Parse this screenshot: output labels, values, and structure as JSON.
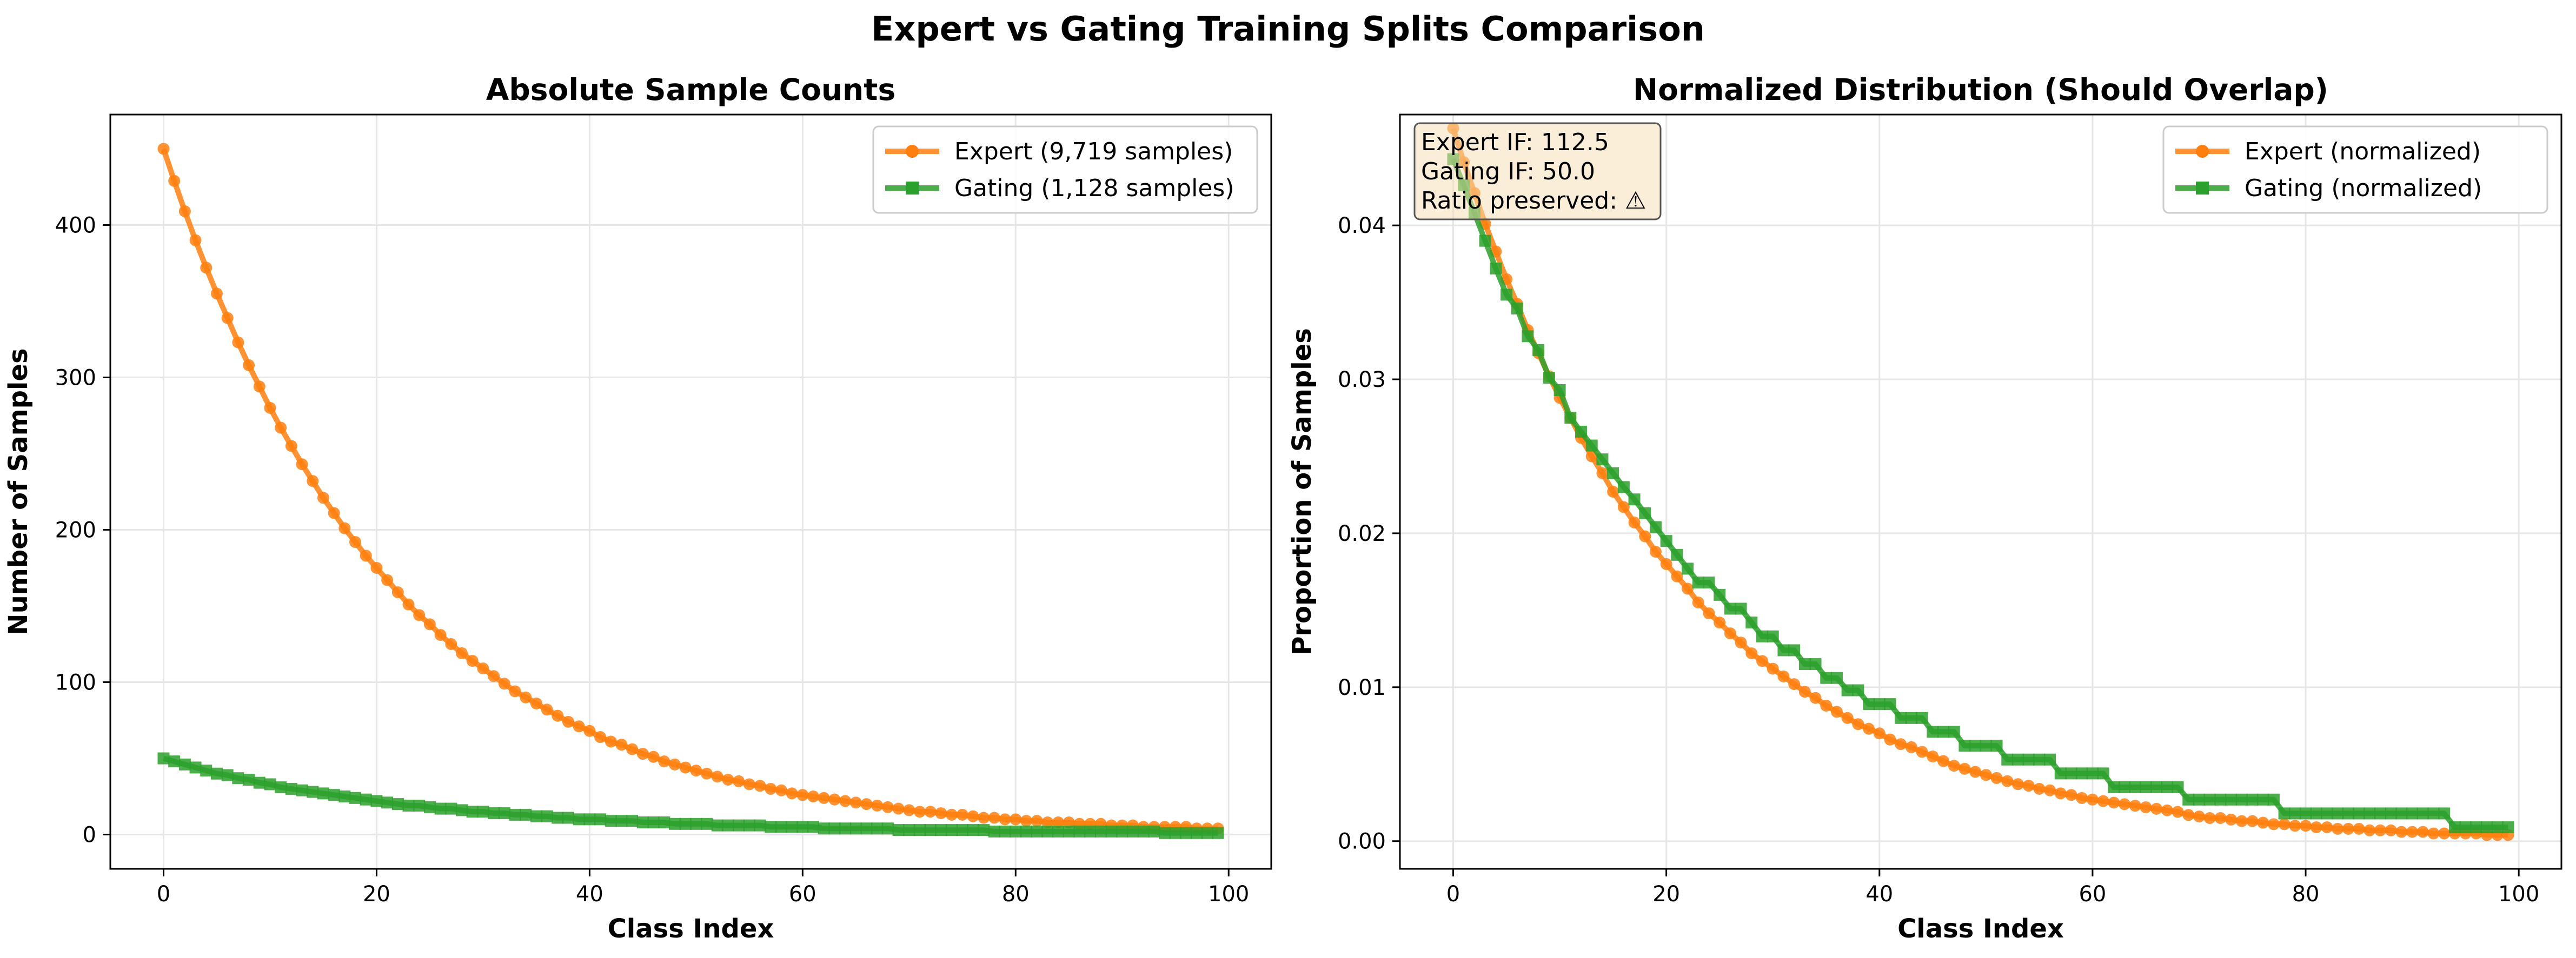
{
  "figure_title": "Expert vs Gating Training Splits Comparison",
  "chart_data": [
    {
      "type": "line",
      "title": "Absolute Sample Counts",
      "xlabel": "Class Index",
      "ylabel": "Number of Samples",
      "xlim": [
        -5,
        104
      ],
      "ylim": [
        -22.5,
        472.5
      ],
      "xticks": [
        0,
        20,
        40,
        60,
        80,
        100
      ],
      "yticks": [
        0,
        100,
        200,
        300,
        400
      ],
      "grid": true,
      "legend_position": "upper right",
      "x": "integers 0-99",
      "series": [
        {
          "name": "Expert (9,719 samples)",
          "color": "#ff7f0e",
          "marker": "circle",
          "values": [
            450,
            429,
            409,
            390,
            372,
            355,
            339,
            323,
            308,
            294,
            280,
            267,
            255,
            243,
            232,
            221,
            211,
            201,
            192,
            183,
            175,
            167,
            159,
            151,
            144,
            138,
            131,
            125,
            119,
            114,
            109,
            104,
            99,
            94,
            90,
            86,
            82,
            78,
            74,
            71,
            68,
            64,
            61,
            59,
            56,
            53,
            51,
            48,
            46,
            44,
            42,
            40,
            38,
            36,
            35,
            33,
            32,
            30,
            29,
            27,
            26,
            25,
            24,
            23,
            22,
            21,
            20,
            19,
            18,
            17,
            16,
            15,
            15,
            14,
            13,
            13,
            12,
            11,
            11,
            10,
            10,
            9,
            9,
            8,
            8,
            8,
            7,
            7,
            7,
            6,
            6,
            6,
            5,
            5,
            5,
            5,
            5,
            4,
            4,
            4
          ]
        },
        {
          "name": "Gating (1,128 samples)",
          "color": "#2ca02c",
          "marker": "square",
          "values": [
            50,
            48,
            46,
            44,
            42,
            40,
            39,
            37,
            36,
            34,
            33,
            31,
            30,
            29,
            28,
            27,
            26,
            25,
            24,
            23,
            22,
            21,
            20,
            19,
            19,
            18,
            17,
            17,
            16,
            15,
            15,
            14,
            14,
            13,
            13,
            12,
            12,
            11,
            11,
            10,
            10,
            10,
            9,
            9,
            9,
            8,
            8,
            8,
            7,
            7,
            7,
            7,
            6,
            6,
            6,
            6,
            6,
            5,
            5,
            5,
            5,
            5,
            4,
            4,
            4,
            4,
            4,
            4,
            4,
            3,
            3,
            3,
            3,
            3,
            3,
            3,
            3,
            3,
            2,
            2,
            2,
            2,
            2,
            2,
            2,
            2,
            2,
            2,
            2,
            2,
            2,
            2,
            2,
            2,
            1,
            1,
            1,
            1,
            1,
            1
          ]
        }
      ]
    },
    {
      "type": "line",
      "title": "Normalized Distribution (Should Overlap)",
      "xlabel": "Class Index",
      "ylabel": "Proportion of Samples",
      "xlim": [
        -5,
        104
      ],
      "ylim": [
        -0.0018,
        0.0472
      ],
      "xticks": [
        0,
        20,
        40,
        60,
        80,
        100
      ],
      "yticks": [
        0.0,
        0.01,
        0.02,
        0.03,
        0.04
      ],
      "tick_labels_y": [
        "0.00",
        "0.01",
        "0.02",
        "0.03",
        "0.04"
      ],
      "grid": true,
      "legend_position": "upper right",
      "x": "integers 0-99",
      "annotation": [
        "Expert IF: 112.5",
        "Gating IF: 50.0",
        "Ratio preserved: ⚠"
      ],
      "series": [
        {
          "name": "Expert (normalized)",
          "color": "#ff7f0e",
          "marker": "circle",
          "values": [
            0.0463,
            0.0441,
            0.0421,
            0.0401,
            0.0383,
            0.0365,
            0.0349,
            0.0332,
            0.0317,
            0.0302,
            0.0288,
            0.0275,
            0.0262,
            0.025,
            0.0239,
            0.0227,
            0.0217,
            0.0207,
            0.0198,
            0.0188,
            0.018,
            0.0172,
            0.0164,
            0.0155,
            0.0148,
            0.0142,
            0.0135,
            0.0129,
            0.0122,
            0.0117,
            0.0112,
            0.0107,
            0.0102,
            0.0097,
            0.0093,
            0.0088,
            0.0084,
            0.008,
            0.0076,
            0.0073,
            0.007,
            0.0066,
            0.0063,
            0.0061,
            0.0058,
            0.0055,
            0.0052,
            0.0049,
            0.0047,
            0.0045,
            0.0043,
            0.0041,
            0.0039,
            0.0037,
            0.0036,
            0.0034,
            0.0033,
            0.0031,
            0.003,
            0.0028,
            0.0027,
            0.0026,
            0.0025,
            0.0024,
            0.0023,
            0.0022,
            0.0021,
            0.002,
            0.0019,
            0.0017,
            0.0016,
            0.0015,
            0.0015,
            0.0014,
            0.0013,
            0.0013,
            0.0012,
            0.0011,
            0.0011,
            0.001,
            0.001,
            0.0009,
            0.0009,
            0.0008,
            0.0008,
            0.0008,
            0.0007,
            0.0007,
            0.0007,
            0.0006,
            0.0006,
            0.0006,
            0.0005,
            0.0005,
            0.0005,
            0.0005,
            0.0005,
            0.0004,
            0.0004,
            0.0004
          ]
        },
        {
          "name": "Gating (normalized)",
          "color": "#2ca02c",
          "marker": "square",
          "values": [
            0.0443,
            0.0426,
            0.0408,
            0.039,
            0.0372,
            0.0355,
            0.0346,
            0.0328,
            0.0319,
            0.0301,
            0.0293,
            0.0275,
            0.0266,
            0.0257,
            0.0248,
            0.0239,
            0.023,
            0.0222,
            0.0213,
            0.0204,
            0.0195,
            0.0186,
            0.0177,
            0.0168,
            0.0168,
            0.016,
            0.0151,
            0.0151,
            0.0142,
            0.0133,
            0.0133,
            0.0124,
            0.0124,
            0.0115,
            0.0115,
            0.0106,
            0.0106,
            0.0098,
            0.0098,
            0.0089,
            0.0089,
            0.0089,
            0.008,
            0.008,
            0.008,
            0.0071,
            0.0071,
            0.0071,
            0.0062,
            0.0062,
            0.0062,
            0.0062,
            0.0053,
            0.0053,
            0.0053,
            0.0053,
            0.0053,
            0.0044,
            0.0044,
            0.0044,
            0.0044,
            0.0044,
            0.0035,
            0.0035,
            0.0035,
            0.0035,
            0.0035,
            0.0035,
            0.0035,
            0.0027,
            0.0027,
            0.0027,
            0.0027,
            0.0027,
            0.0027,
            0.0027,
            0.0027,
            0.0027,
            0.0018,
            0.0018,
            0.0018,
            0.0018,
            0.0018,
            0.0018,
            0.0018,
            0.0018,
            0.0018,
            0.0018,
            0.0018,
            0.0018,
            0.0018,
            0.0018,
            0.0018,
            0.0018,
            0.0009,
            0.0009,
            0.0009,
            0.0009,
            0.0009,
            0.0009
          ]
        }
      ]
    }
  ]
}
